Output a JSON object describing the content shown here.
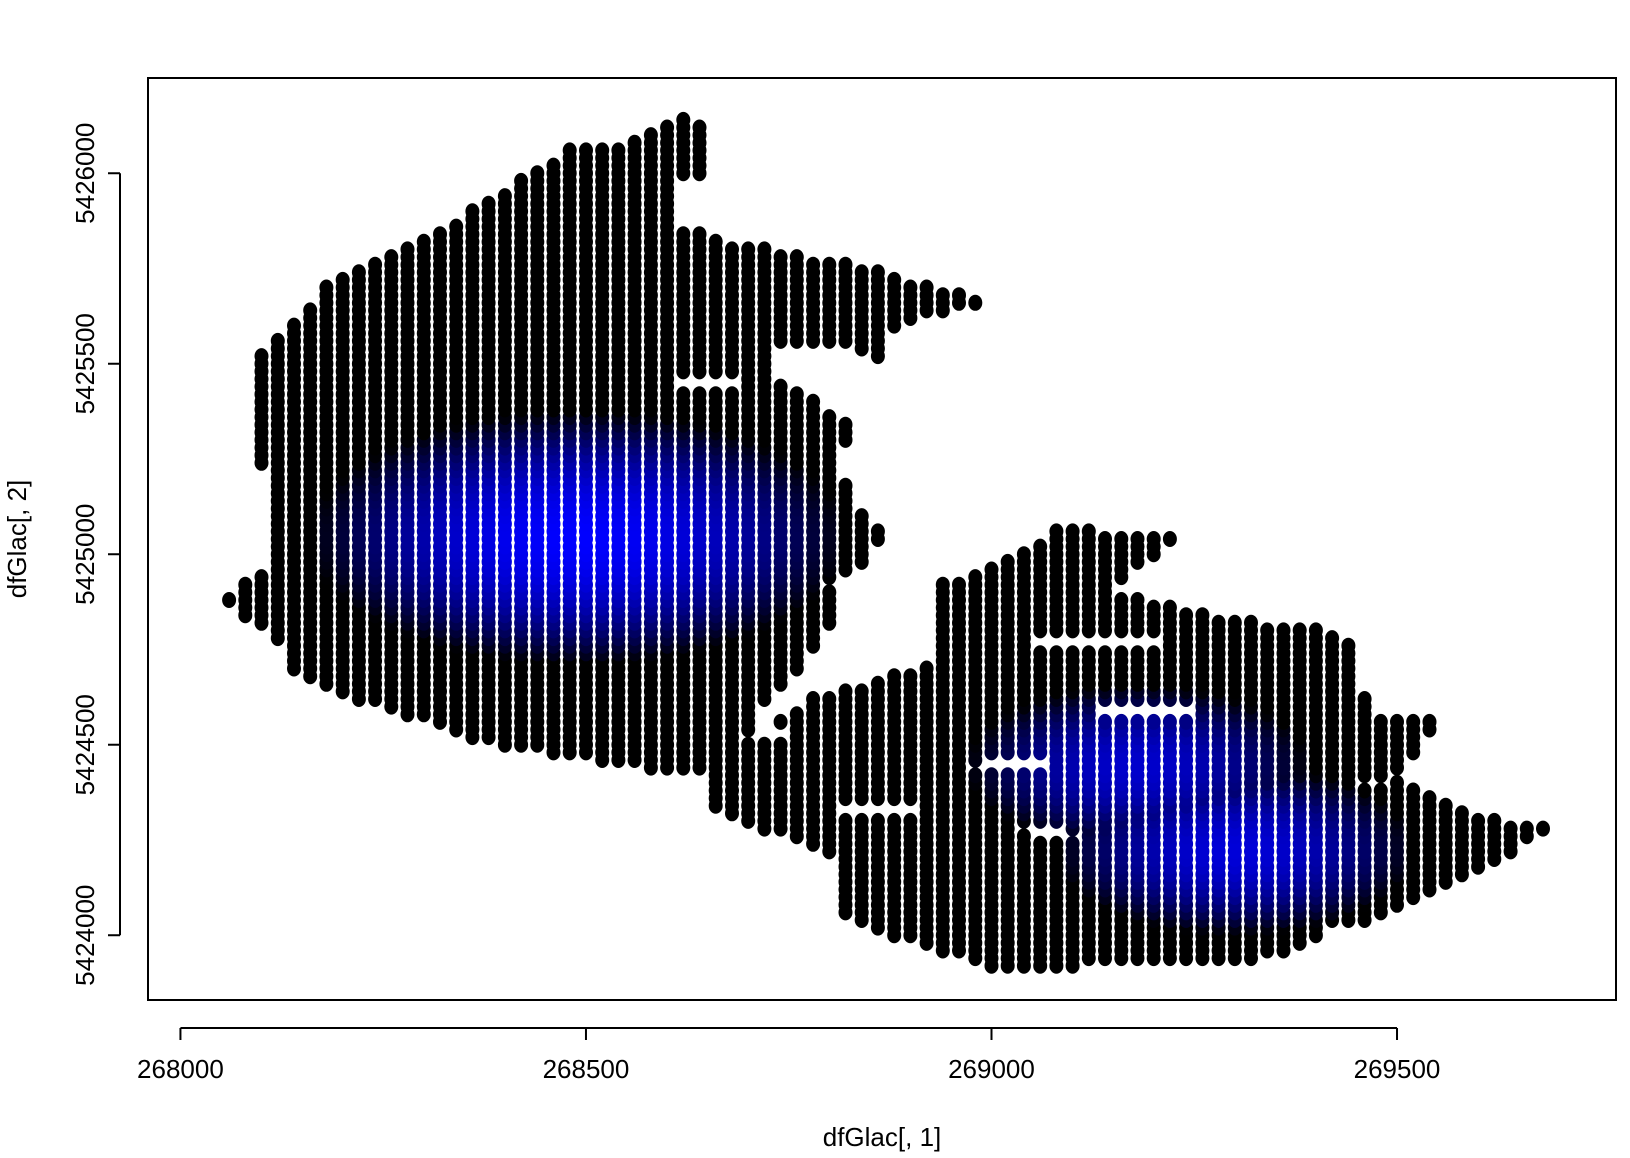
{
  "chart_data": {
    "type": "scatter",
    "title": "",
    "xlabel": "dfGlac[, 1]",
    "ylabel": "dfGlac[, 2]",
    "xlim": [
      267960,
      269770
    ],
    "ylim": [
      5423830,
      5426250
    ],
    "xticks": [
      268000,
      268500,
      269000,
      269500
    ],
    "yticks": [
      5424000,
      5424500,
      5425000,
      5425500,
      5426000
    ],
    "xtick_labels": [
      "268000",
      "268500",
      "269000",
      "269500"
    ],
    "ytick_labels": [
      "5424000",
      "5424500",
      "5425000",
      "5425500",
      "5426000"
    ],
    "grid": false,
    "legend": "none",
    "point_color_edge": "#000000",
    "point_color_peak": "#0000ff",
    "grid_spacing": 20,
    "color_peaks": [
      {
        "x": 268490,
        "y": 5425050,
        "radius": 330,
        "weight": 1.0
      },
      {
        "x": 269180,
        "y": 5424450,
        "radius": 210,
        "weight": 0.8
      },
      {
        "x": 269300,
        "y": 5424230,
        "radius": 220,
        "weight": 0.85
      }
    ],
    "region_outline_west": [
      [
        268050,
        5424880
      ],
      [
        268100,
        5424950
      ],
      [
        268120,
        5425150
      ],
      [
        268090,
        5425280
      ],
      [
        268100,
        5425520
      ],
      [
        268180,
        5425700
      ],
      [
        268280,
        5425800
      ],
      [
        268380,
        5425930
      ],
      [
        268480,
        5426060
      ],
      [
        268560,
        5426080
      ],
      [
        268620,
        5426160
      ],
      [
        268660,
        5426110
      ],
      [
        268660,
        5426000
      ],
      [
        268610,
        5425980
      ],
      [
        268610,
        5425860
      ],
      [
        268680,
        5425820
      ],
      [
        268830,
        5425760
      ],
      [
        268910,
        5425710
      ],
      [
        268980,
        5425670
      ],
      [
        269010,
        5425650
      ],
      [
        268910,
        5425630
      ],
      [
        268870,
        5425570
      ],
      [
        268870,
        5425500
      ],
      [
        268800,
        5425560
      ],
      [
        268730,
        5425560
      ],
      [
        268740,
        5425460
      ],
      [
        268800,
        5425380
      ],
      [
        268830,
        5425330
      ],
      [
        268810,
        5425240
      ],
      [
        268830,
        5425130
      ],
      [
        268870,
        5425050
      ],
      [
        268840,
        5424970
      ],
      [
        268800,
        5424920
      ],
      [
        268810,
        5424850
      ],
      [
        268770,
        5424720
      ],
      [
        268720,
        5424610
      ],
      [
        268700,
        5424500
      ],
      [
        268680,
        5424420
      ],
      [
        268600,
        5424430
      ],
      [
        268480,
        5424470
      ],
      [
        268370,
        5424510
      ],
      [
        268260,
        5424590
      ],
      [
        268190,
        5424630
      ],
      [
        268140,
        5424690
      ],
      [
        268110,
        5424800
      ]
    ],
    "region_outline_east": [
      [
        268660,
        5424450
      ],
      [
        268700,
        5424530
      ],
      [
        268780,
        5424620
      ],
      [
        268860,
        5424670
      ],
      [
        268940,
        5424720
      ],
      [
        268940,
        5424920
      ],
      [
        269020,
        5424980
      ],
      [
        269090,
        5425080
      ],
      [
        269150,
        5425050
      ],
      [
        269230,
        5425050
      ],
      [
        269190,
        5424980
      ],
      [
        269150,
        5424900
      ],
      [
        269250,
        5424850
      ],
      [
        269330,
        5424820
      ],
      [
        269390,
        5424820
      ],
      [
        269450,
        5424770
      ],
      [
        269450,
        5424660
      ],
      [
        269480,
        5424570
      ],
      [
        269550,
        5424560
      ],
      [
        269520,
        5424470
      ],
      [
        269500,
        5424420
      ],
      [
        269560,
        5424350
      ],
      [
        269640,
        5424290
      ],
      [
        269690,
        5424280
      ],
      [
        269720,
        5424320
      ],
      [
        269660,
        5424240
      ],
      [
        269560,
        5424130
      ],
      [
        269470,
        5424040
      ],
      [
        269420,
        5424020
      ],
      [
        269370,
        5423950
      ],
      [
        269280,
        5423920
      ],
      [
        269180,
        5423940
      ],
      [
        269120,
        5423930
      ],
      [
        269070,
        5423900
      ],
      [
        268990,
        5423920
      ],
      [
        268890,
        5423990
      ],
      [
        268810,
        5424060
      ],
      [
        268800,
        5424210
      ],
      [
        268760,
        5424260
      ],
      [
        268710,
        5424280
      ],
      [
        268660,
        5424340
      ]
    ]
  }
}
